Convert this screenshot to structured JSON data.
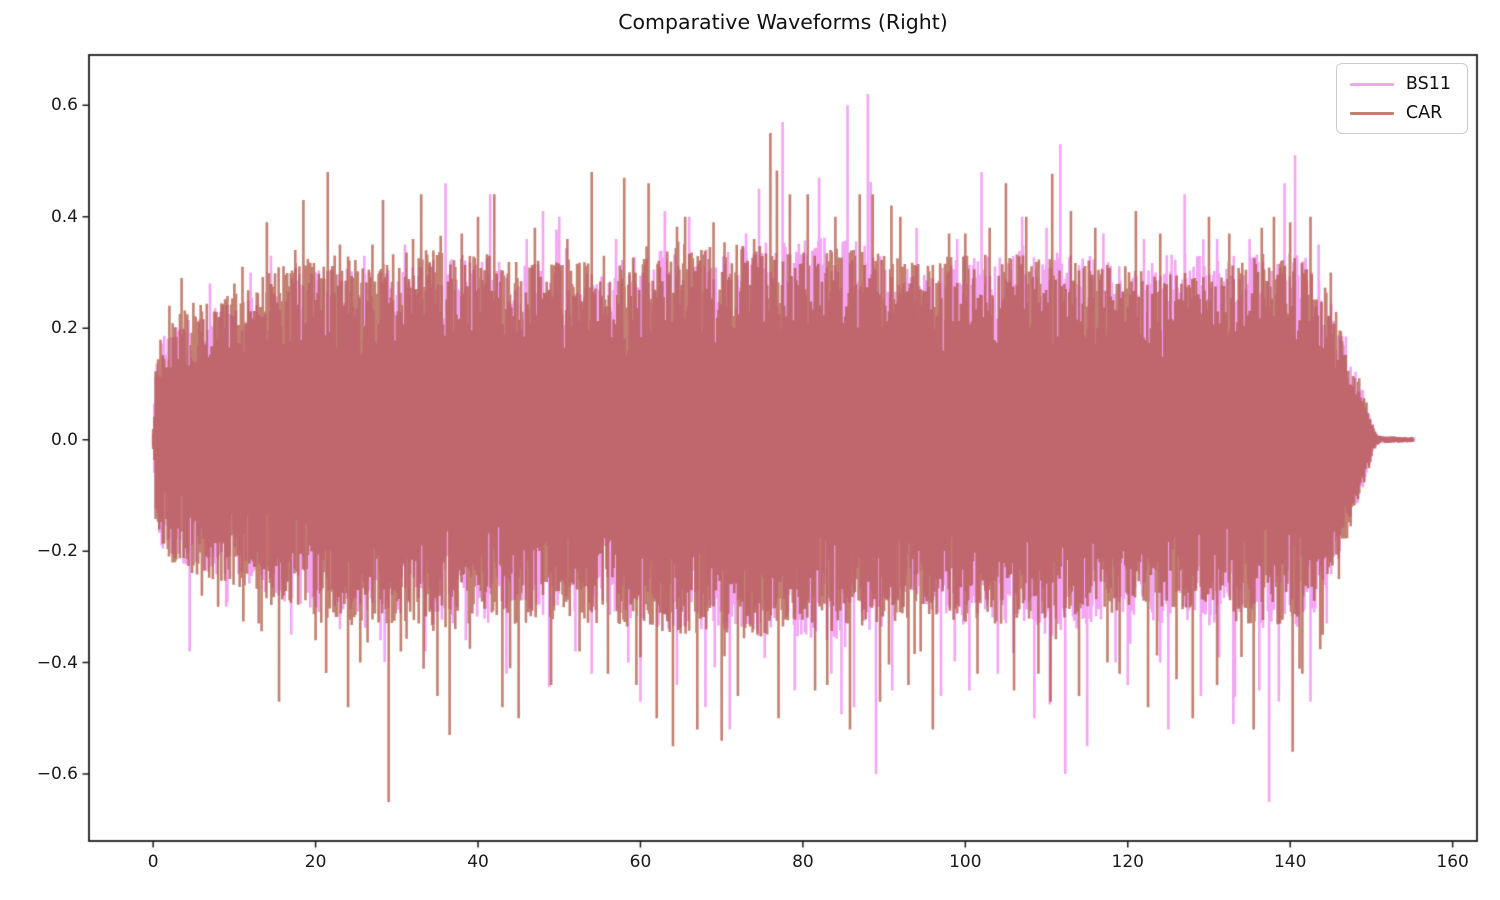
{
  "figure": {
    "background": "#ffffff",
    "frame_color": "#1a1a1a"
  },
  "chart_data": {
    "type": "line",
    "subtype": "audio-waveform",
    "title": "Comparative Waveforms (Right)",
    "xlabel": "",
    "ylabel": "",
    "xlim": [
      -7.9,
      163.0
    ],
    "ylim": [
      -0.72,
      0.69
    ],
    "grid": false,
    "legend_position": "upper right",
    "xticks": [
      0,
      20,
      40,
      60,
      80,
      100,
      120,
      140,
      160
    ],
    "xtick_labels": [
      "0",
      "20",
      "40",
      "60",
      "80",
      "100",
      "120",
      "140",
      "160"
    ],
    "yticks": [
      -0.6,
      -0.4,
      -0.2,
      0.0,
      0.2,
      0.4,
      0.6
    ],
    "ytick_labels": [
      "−0.6",
      "−0.4",
      "−0.2",
      "0.0",
      "0.2",
      "0.4",
      "0.6"
    ],
    "series": [
      {
        "name": "BS11",
        "color": "#EE82EE",
        "alpha": 0.72,
        "duration": 155.3,
        "envelope": [
          [
            0,
            0.02
          ],
          [
            0.3,
            0.12
          ],
          [
            1,
            0.17
          ],
          [
            3,
            0.19
          ],
          [
            5,
            0.2
          ],
          [
            10,
            0.22
          ],
          [
            15,
            0.25
          ],
          [
            20,
            0.27
          ],
          [
            25,
            0.27
          ],
          [
            30,
            0.27
          ],
          [
            35,
            0.29
          ],
          [
            40,
            0.29
          ],
          [
            45,
            0.28
          ],
          [
            50,
            0.27
          ],
          [
            55,
            0.27
          ],
          [
            60,
            0.29
          ],
          [
            65,
            0.3
          ],
          [
            70,
            0.3
          ],
          [
            75,
            0.31
          ],
          [
            80,
            0.31
          ],
          [
            85,
            0.33
          ],
          [
            90,
            0.29
          ],
          [
            95,
            0.27
          ],
          [
            100,
            0.29
          ],
          [
            105,
            0.29
          ],
          [
            110,
            0.31
          ],
          [
            115,
            0.29
          ],
          [
            120,
            0.27
          ],
          [
            125,
            0.29
          ],
          [
            130,
            0.29
          ],
          [
            135,
            0.29
          ],
          [
            140,
            0.31
          ],
          [
            143,
            0.27
          ],
          [
            145,
            0.22
          ],
          [
            147,
            0.16
          ],
          [
            148.5,
            0.1
          ],
          [
            149.5,
            0.05
          ],
          [
            150.5,
            0.012
          ],
          [
            151,
            0.006
          ],
          [
            155.3,
            0.004
          ]
        ],
        "peaks": [
          [
            4.5,
            -0.38
          ],
          [
            7,
            0.28
          ],
          [
            9,
            -0.3
          ],
          [
            12,
            0.3
          ],
          [
            14.5,
            0.33
          ],
          [
            17,
            -0.35
          ],
          [
            20,
            0.3
          ],
          [
            23,
            -0.34
          ],
          [
            26,
            0.33
          ],
          [
            28,
            -0.36
          ],
          [
            31,
            0.35
          ],
          [
            33.5,
            -0.38
          ],
          [
            36,
            0.46
          ],
          [
            38.5,
            -0.36
          ],
          [
            41.5,
            0.44
          ],
          [
            43.5,
            -0.42
          ],
          [
            46,
            0.36
          ],
          [
            48,
            0.41
          ],
          [
            50,
            0.4
          ],
          [
            52,
            -0.38
          ],
          [
            54,
            -0.42
          ],
          [
            57,
            0.36
          ],
          [
            58.5,
            -0.4
          ],
          [
            60,
            -0.47
          ],
          [
            63,
            0.41
          ],
          [
            64.5,
            -0.44
          ],
          [
            66,
            0.4
          ],
          [
            68,
            -0.48
          ],
          [
            71,
            -0.52
          ],
          [
            73,
            0.37
          ],
          [
            74.6,
            0.45
          ],
          [
            77.5,
            0.57
          ],
          [
            79,
            -0.45
          ],
          [
            82,
            0.47
          ],
          [
            83.5,
            -0.42
          ],
          [
            85.5,
            0.6
          ],
          [
            86.3,
            -0.48
          ],
          [
            88,
            0.62
          ],
          [
            89,
            -0.6
          ],
          [
            91,
            -0.45
          ],
          [
            94,
            0.38
          ],
          [
            97,
            -0.46
          ],
          [
            99,
            0.36
          ],
          [
            100.5,
            -0.45
          ],
          [
            102,
            0.48
          ],
          [
            104,
            -0.42
          ],
          [
            107,
            0.4
          ],
          [
            108.5,
            -0.5
          ],
          [
            110,
            0.38
          ],
          [
            111.7,
            0.53
          ],
          [
            112.3,
            -0.6
          ],
          [
            115,
            -0.55
          ],
          [
            117,
            0.37
          ],
          [
            118.5,
            -0.4
          ],
          [
            120,
            -0.44
          ],
          [
            122,
            0.36
          ],
          [
            124,
            -0.4
          ],
          [
            125,
            -0.52
          ],
          [
            127,
            0.44
          ],
          [
            129,
            -0.46
          ],
          [
            131,
            0.36
          ],
          [
            133,
            -0.51
          ],
          [
            135,
            0.36
          ],
          [
            136.2,
            -0.45
          ],
          [
            137.4,
            -0.65
          ],
          [
            138.6,
            -0.47
          ],
          [
            139.3,
            0.46
          ],
          [
            140.6,
            0.51
          ],
          [
            142.5,
            -0.47
          ],
          [
            143.5,
            0.35
          ],
          [
            144.5,
            -0.33
          ]
        ]
      },
      {
        "name": "CAR",
        "color": "#AC4F3A",
        "alpha": 0.72,
        "duration": 155.2,
        "envelope": [
          [
            0,
            0.02
          ],
          [
            0.3,
            0.13
          ],
          [
            1,
            0.18
          ],
          [
            3,
            0.2
          ],
          [
            5,
            0.21
          ],
          [
            10,
            0.23
          ],
          [
            15,
            0.27
          ],
          [
            20,
            0.29
          ],
          [
            25,
            0.29
          ],
          [
            30,
            0.29
          ],
          [
            35,
            0.3
          ],
          [
            40,
            0.29
          ],
          [
            45,
            0.29
          ],
          [
            50,
            0.28
          ],
          [
            55,
            0.29
          ],
          [
            60,
            0.3
          ],
          [
            65,
            0.31
          ],
          [
            70,
            0.31
          ],
          [
            75,
            0.31
          ],
          [
            80,
            0.3
          ],
          [
            85,
            0.3
          ],
          [
            90,
            0.29
          ],
          [
            95,
            0.28
          ],
          [
            100,
            0.29
          ],
          [
            105,
            0.29
          ],
          [
            110,
            0.29
          ],
          [
            115,
            0.28
          ],
          [
            120,
            0.27
          ],
          [
            125,
            0.27
          ],
          [
            130,
            0.27
          ],
          [
            135,
            0.29
          ],
          [
            140,
            0.29
          ],
          [
            143,
            0.27
          ],
          [
            145,
            0.22
          ],
          [
            147,
            0.16
          ],
          [
            148.5,
            0.1
          ],
          [
            149.5,
            0.05
          ],
          [
            150.5,
            0.012
          ],
          [
            151,
            0.006
          ],
          [
            155.2,
            0.004
          ]
        ],
        "peaks": [
          [
            2,
            0.24
          ],
          [
            3.5,
            0.29
          ],
          [
            6,
            -0.28
          ],
          [
            8,
            -0.3
          ],
          [
            10,
            0.28
          ],
          [
            11,
            0.31
          ],
          [
            13,
            -0.33
          ],
          [
            14,
            0.39
          ],
          [
            15.5,
            -0.47
          ],
          [
            17.5,
            0.34
          ],
          [
            18.5,
            0.43
          ],
          [
            20,
            -0.36
          ],
          [
            21.5,
            0.48
          ],
          [
            23,
            0.35
          ],
          [
            24,
            -0.48
          ],
          [
            25.5,
            -0.4
          ],
          [
            27,
            0.35
          ],
          [
            28.3,
            0.43
          ],
          [
            29,
            -0.65
          ],
          [
            30.5,
            -0.38
          ],
          [
            32,
            0.36
          ],
          [
            33,
            0.44
          ],
          [
            35,
            -0.46
          ],
          [
            36.5,
            -0.53
          ],
          [
            38,
            0.37
          ],
          [
            40,
            0.4
          ],
          [
            42,
            0.44
          ],
          [
            43,
            -0.48
          ],
          [
            45,
            -0.5
          ],
          [
            47,
            0.38
          ],
          [
            49,
            -0.44
          ],
          [
            51,
            0.36
          ],
          [
            52.5,
            -0.38
          ],
          [
            54,
            0.48
          ],
          [
            56,
            -0.42
          ],
          [
            58,
            0.47
          ],
          [
            59.5,
            -0.44
          ],
          [
            61,
            0.46
          ],
          [
            62,
            -0.5
          ],
          [
            64,
            -0.55
          ],
          [
            65.5,
            0.4
          ],
          [
            67,
            -0.52
          ],
          [
            69,
            0.39
          ],
          [
            70,
            -0.54
          ],
          [
            72,
            -0.46
          ],
          [
            74,
            0.36
          ],
          [
            76,
            0.55
          ],
          [
            77,
            -0.5
          ],
          [
            78.4,
            0.44
          ],
          [
            80.6,
            0.44
          ],
          [
            81.5,
            -0.45
          ],
          [
            83,
            -0.44
          ],
          [
            84,
            0.4
          ],
          [
            85.8,
            -0.52
          ],
          [
            87,
            0.44
          ],
          [
            88.6,
            0.44
          ],
          [
            89.5,
            -0.47
          ],
          [
            90.9,
            0.42
          ],
          [
            92,
            0.4
          ],
          [
            93,
            -0.44
          ],
          [
            94.5,
            -0.38
          ],
          [
            96,
            -0.52
          ],
          [
            98,
            0.37
          ],
          [
            100,
            0.37
          ],
          [
            101.5,
            -0.42
          ],
          [
            103,
            0.38
          ],
          [
            105,
            0.46
          ],
          [
            106,
            -0.45
          ],
          [
            107.5,
            0.4
          ],
          [
            109,
            -0.42
          ],
          [
            110.5,
            -0.47
          ],
          [
            113,
            0.41
          ],
          [
            114,
            -0.46
          ],
          [
            116,
            0.38
          ],
          [
            117.5,
            -0.4
          ],
          [
            119,
            -0.42
          ],
          [
            121,
            0.41
          ],
          [
            122.5,
            -0.48
          ],
          [
            124,
            0.37
          ],
          [
            126,
            -0.43
          ],
          [
            128,
            -0.5
          ],
          [
            130,
            0.4
          ],
          [
            131,
            -0.44
          ],
          [
            132.5,
            0.37
          ],
          [
            134,
            -0.39
          ],
          [
            135.5,
            -0.52
          ],
          [
            136.5,
            0.38
          ],
          [
            138,
            0.4
          ],
          [
            140,
            0.39
          ],
          [
            140.3,
            -0.56
          ],
          [
            141.5,
            -0.42
          ],
          [
            142.5,
            0.4
          ],
          [
            144,
            -0.35
          ],
          [
            145,
            0.3
          ],
          [
            146,
            -0.25
          ]
        ]
      }
    ]
  }
}
